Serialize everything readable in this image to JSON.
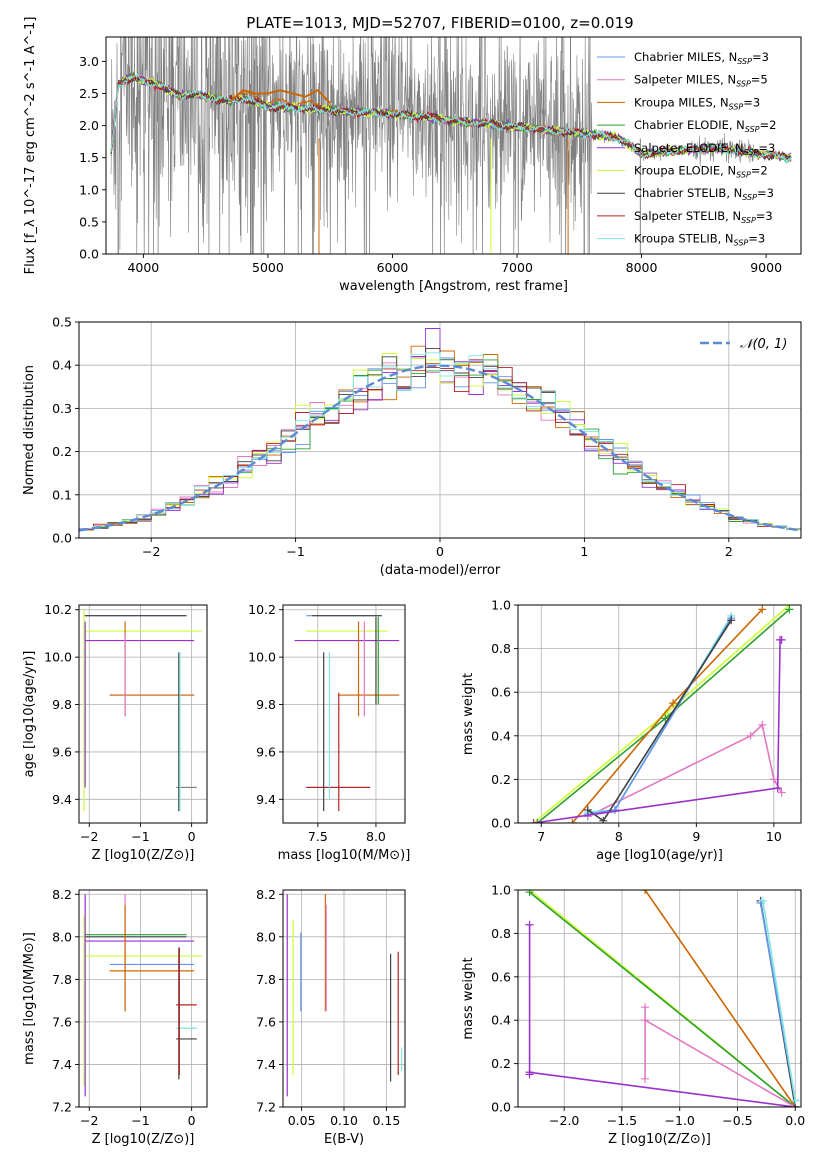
{
  "title": "PLATE=1013, MJD=52707, FIBERID=0100, z=0.019",
  "colors": {
    "c0": "#6495ed",
    "c1": "#e377c2",
    "c2": "#cc6600",
    "c3": "#2ca02c",
    "c4": "#9932cc",
    "c5": "#ccff33",
    "c6": "#404040",
    "c7": "#b22222",
    "c8": "#7fe5e5",
    "data": "#808080"
  },
  "legend": [
    {
      "model": "Chabrier MILES",
      "nssp": "3",
      "color": "#6495ed"
    },
    {
      "model": "Salpeter MILES",
      "nssp": "5",
      "color": "#e377c2"
    },
    {
      "model": "Kroupa MILES",
      "nssp": "3",
      "color": "#cc6600"
    },
    {
      "model": "Chabrier ELODIE",
      "nssp": "2",
      "color": "#2ca02c"
    },
    {
      "model": "Salpeter ELODIE",
      "nssp": "3",
      "color": "#9932cc"
    },
    {
      "model": "Kroupa ELODIE",
      "nssp": "2",
      "color": "#ccff33"
    },
    {
      "model": "Chabrier STELIB",
      "nssp": "3",
      "color": "#404040"
    },
    {
      "model": "Salpeter STELIB",
      "nssp": "3",
      "color": "#b22222"
    },
    {
      "model": "Kroupa STELIB",
      "nssp": "3",
      "color": "#7fe5e5"
    }
  ],
  "nssp_prefix": "N",
  "nssp_sub": "SSP",
  "chart_data": [
    {
      "id": "spectrum",
      "type": "line",
      "xlabel": "wavelength [Angstrom, rest frame]",
      "ylabel": "Flux [f_λ 10^-17 erg cm^-2 s^-1 A^-1]",
      "xlim": [
        3700,
        9280
      ],
      "ylim": [
        0,
        3.38
      ],
      "xticks": [
        4000,
        5000,
        6000,
        7000,
        8000,
        9000
      ],
      "yticks": [
        0.0,
        0.5,
        1.0,
        1.5,
        2.0,
        2.5,
        3.0
      ],
      "continuum": {
        "x": [
          3740,
          3800,
          3900,
          4000,
          4100,
          4200,
          4300,
          4400,
          4500,
          4600,
          4700,
          4800,
          4900,
          5000,
          5200,
          5400,
          5600,
          5800,
          6000,
          6200,
          6400,
          6600,
          6800,
          7000,
          7200,
          7400,
          7600,
          7800,
          7900,
          8000,
          8200,
          8400,
          8600,
          8800,
          9000,
          9200
        ],
        "y": [
          1.55,
          2.65,
          2.75,
          2.7,
          2.65,
          2.55,
          2.45,
          2.5,
          2.45,
          2.4,
          2.38,
          2.42,
          2.35,
          2.3,
          2.28,
          2.25,
          2.22,
          2.2,
          2.18,
          2.15,
          2.1,
          2.05,
          2.02,
          1.98,
          1.94,
          1.9,
          1.86,
          1.82,
          1.7,
          1.55,
          1.6,
          1.62,
          1.65,
          1.6,
          1.55,
          1.5
        ]
      },
      "orange_bump": {
        "x": [
          4700,
          4800,
          4900,
          5000,
          5100,
          5200,
          5300,
          5400,
          5500
        ],
        "y": [
          2.38,
          2.55,
          2.5,
          2.5,
          2.55,
          2.5,
          2.45,
          2.55,
          2.35
        ]
      },
      "dropouts": [
        {
          "x": 5410,
          "color": "#cc6600"
        },
        {
          "x": 6790,
          "color": "#ccff33"
        },
        {
          "x": 7410,
          "color": "#cc6600"
        },
        {
          "x": 5790,
          "color": "#808080"
        },
        {
          "x": 7990,
          "color": "#808080"
        }
      ],
      "noise_range": [
        3740,
        7600
      ]
    },
    {
      "id": "residuals",
      "type": "bar",
      "xlabel": "(data-model)/error",
      "ylabel": "Normed distribution",
      "xlim": [
        -2.5,
        2.5
      ],
      "ylim": [
        0,
        0.5
      ],
      "xticks": [
        -2,
        -1,
        0,
        1,
        2
      ],
      "yticks": [
        0.0,
        0.1,
        0.2,
        0.3,
        0.4,
        0.5
      ],
      "bin_width": 0.1,
      "reference_label": "𝒩(0, 1)",
      "reference_color": "#5b8bd6"
    },
    {
      "id": "age-vs-z",
      "type": "scatter",
      "xlabel": "Z [log10(Z/Z⊙)]",
      "ylabel": "age  [log10(age/yr)]",
      "xlim": [
        -2.2,
        0.3
      ],
      "ylim": [
        9.3,
        10.22
      ],
      "xticks": [
        -2,
        -1,
        0
      ],
      "yticks": [
        9.4,
        9.6,
        9.8,
        10.0,
        10.2
      ],
      "hsegs": [
        {
          "x0": -2.1,
          "x1": -0.1,
          "y": 10.175,
          "color": "#6495ed"
        },
        {
          "x0": -2.1,
          "x1": -0.1,
          "y": 10.175,
          "color": "#404040"
        },
        {
          "x0": -2.1,
          "x1": 0.2,
          "y": 10.11,
          "color": "#ccff33"
        },
        {
          "x0": -2.1,
          "x1": 0.05,
          "y": 10.07,
          "color": "#9932cc"
        },
        {
          "x0": -1.6,
          "x1": 0.05,
          "y": 9.84,
          "color": "#e377c2"
        },
        {
          "x0": -1.6,
          "x1": 0.05,
          "y": 9.84,
          "color": "#cc6600"
        },
        {
          "x0": -0.3,
          "x1": 0.1,
          "y": 9.45,
          "color": "#7fe5e5"
        },
        {
          "x0": -0.3,
          "x1": 0.1,
          "y": 9.45,
          "color": "#808080"
        }
      ],
      "vsegs": [
        {
          "x": -2.1,
          "y0": 9.35,
          "y1": 10.2,
          "color": "#ccff33"
        },
        {
          "x": -2.08,
          "y0": 9.45,
          "y1": 10.15,
          "color": "#9932cc"
        },
        {
          "x": -1.3,
          "y0": 9.75,
          "y1": 10.15,
          "color": "#cc6600"
        },
        {
          "x": -1.3,
          "y0": 9.75,
          "y1": 10.1,
          "color": "#e377c2"
        },
        {
          "x": -0.25,
          "y0": 9.35,
          "y1": 10.02,
          "color": "#404040"
        },
        {
          "x": -0.23,
          "y0": 9.35,
          "y1": 10.02,
          "color": "#7fe5e5"
        }
      ]
    },
    {
      "id": "age-vs-mass",
      "type": "scatter",
      "xlabel": "mass [log10(M/M⊙)]",
      "ylabel": "",
      "xlim": [
        7.2,
        8.25
      ],
      "ylim": [
        9.3,
        10.22
      ],
      "xticks": [
        7.5,
        8.0
      ],
      "yticks": [
        9.4,
        9.6,
        9.8,
        10.0,
        10.2
      ],
      "hsegs": [
        {
          "x0": 7.4,
          "x1": 8.05,
          "y": 10.175,
          "color": "#6495ed"
        },
        {
          "x0": 7.45,
          "x1": 8.05,
          "y": 10.175,
          "color": "#404040"
        },
        {
          "x0": 7.4,
          "x1": 8.1,
          "y": 10.11,
          "color": "#ccff33"
        },
        {
          "x0": 7.3,
          "x1": 8.2,
          "y": 10.07,
          "color": "#9932cc"
        },
        {
          "x0": 7.68,
          "x1": 8.2,
          "y": 9.84,
          "color": "#e377c2"
        },
        {
          "x0": 7.68,
          "x1": 8.2,
          "y": 9.84,
          "color": "#cc6600"
        },
        {
          "x0": 7.4,
          "x1": 7.95,
          "y": 9.45,
          "color": "#404040"
        },
        {
          "x0": 7.4,
          "x1": 7.95,
          "y": 9.45,
          "color": "#b22222"
        }
      ],
      "vsegs": [
        {
          "x": 7.55,
          "y0": 9.35,
          "y1": 10.02,
          "color": "#404040"
        },
        {
          "x": 7.6,
          "y0": 9.4,
          "y1": 10.02,
          "color": "#7fe5e5"
        },
        {
          "x": 7.68,
          "y0": 9.35,
          "y1": 9.85,
          "color": "#b22222"
        },
        {
          "x": 7.85,
          "y0": 9.75,
          "y1": 10.15,
          "color": "#cc6600"
        },
        {
          "x": 7.9,
          "y0": 9.75,
          "y1": 10.15,
          "color": "#e377c2"
        },
        {
          "x": 8.0,
          "y0": 9.8,
          "y1": 10.17,
          "color": "#404040"
        },
        {
          "x": 8.02,
          "y0": 9.8,
          "y1": 10.17,
          "color": "#2ca02c"
        }
      ]
    },
    {
      "id": "weight-vs-age",
      "type": "line",
      "xlabel": "age  [log10(age/yr)]",
      "ylabel": "mass weight",
      "xlim": [
        6.7,
        10.35
      ],
      "ylim": [
        0,
        1.0
      ],
      "xticks": [
        7,
        8,
        9,
        10
      ],
      "yticks": [
        0.0,
        0.2,
        0.4,
        0.6,
        0.8,
        1.0
      ],
      "series": [
        {
          "color": "#ccff33",
          "x": [
            6.9,
            8.6,
            10.2
          ],
          "y": [
            0.0,
            0.5,
            1.0
          ]
        },
        {
          "color": "#2ca02c",
          "x": [
            6.95,
            8.6,
            10.2
          ],
          "y": [
            0.0,
            0.48,
            0.98
          ]
        },
        {
          "color": "#cc6600",
          "x": [
            7.4,
            8.7,
            9.85
          ],
          "y": [
            0.0,
            0.55,
            0.98
          ]
        },
        {
          "color": "#e377c2",
          "x": [
            7.6,
            9.7,
            9.85,
            10.0,
            10.1
          ],
          "y": [
            0.03,
            0.4,
            0.45,
            0.2,
            0.14
          ]
        },
        {
          "color": "#7fe5e5",
          "x": [
            7.6,
            7.95,
            9.45
          ],
          "y": [
            0.05,
            0.06,
            0.95
          ]
        },
        {
          "color": "#6495ed",
          "x": [
            7.6,
            7.95,
            9.45
          ],
          "y": [
            0.04,
            0.06,
            0.94
          ]
        },
        {
          "color": "#404040",
          "x": [
            7.6,
            7.8,
            9.45
          ],
          "y": [
            0.06,
            0.01,
            0.93
          ]
        },
        {
          "color": "#9932cc",
          "x": [
            6.9,
            10.05,
            10.08,
            10.1
          ],
          "y": [
            0.0,
            0.16,
            0.84,
            0.84
          ]
        }
      ]
    },
    {
      "id": "mass-vs-z",
      "type": "scatter",
      "xlabel": "Z [log10(Z/Z⊙)]",
      "ylabel": "mass [log10(M/M⊙)]",
      "xlim": [
        -2.2,
        0.3
      ],
      "ylim": [
        7.2,
        8.22
      ],
      "xticks": [
        -2,
        -1,
        0
      ],
      "yticks": [
        7.2,
        7.4,
        7.6,
        7.8,
        8.0,
        8.2
      ],
      "hsegs": [
        {
          "x0": -2.1,
          "x1": -0.1,
          "y": 8.0,
          "color": "#404040"
        },
        {
          "x0": -2.1,
          "x1": -0.1,
          "y": 8.01,
          "color": "#2ca02c"
        },
        {
          "x0": -2.1,
          "x1": 0.2,
          "y": 7.91,
          "color": "#ccff33"
        },
        {
          "x0": -2.1,
          "x1": 0.05,
          "y": 7.98,
          "color": "#9932cc"
        },
        {
          "x0": -1.6,
          "x1": 0.05,
          "y": 7.87,
          "color": "#6495ed"
        },
        {
          "x0": -1.6,
          "x1": 0.05,
          "y": 7.84,
          "color": "#cc6600"
        },
        {
          "x0": -0.3,
          "x1": 0.1,
          "y": 7.68,
          "color": "#b22222"
        },
        {
          "x0": -0.3,
          "x1": 0.1,
          "y": 7.57,
          "color": "#7fe5e5"
        },
        {
          "x0": -0.3,
          "x1": 0.1,
          "y": 7.52,
          "color": "#404040"
        }
      ],
      "vsegs": [
        {
          "x": -2.1,
          "y0": 7.3,
          "y1": 8.1,
          "color": "#ccff33"
        },
        {
          "x": -2.08,
          "y0": 7.25,
          "y1": 8.2,
          "color": "#9932cc"
        },
        {
          "x": -1.3,
          "y0": 7.65,
          "y1": 8.2,
          "color": "#e377c2"
        },
        {
          "x": -1.3,
          "y0": 7.65,
          "y1": 8.15,
          "color": "#cc6600"
        },
        {
          "x": -0.25,
          "y0": 7.33,
          "y1": 7.95,
          "color": "#404040"
        },
        {
          "x": -0.24,
          "y0": 7.35,
          "y1": 7.95,
          "color": "#b22222"
        }
      ]
    },
    {
      "id": "mass-vs-ebv",
      "type": "scatter",
      "xlabel": "E(B-V)",
      "ylabel": "",
      "xlim": [
        0.028,
        0.172
      ],
      "ylim": [
        7.2,
        8.22
      ],
      "xticks": [
        0.05,
        0.1,
        0.15
      ],
      "yticks": [
        7.2,
        7.4,
        7.6,
        7.8,
        8.0,
        8.2
      ],
      "vsegs": [
        {
          "x": 0.033,
          "y0": 7.25,
          "y1": 8.2,
          "color": "#9932cc"
        },
        {
          "x": 0.04,
          "y0": 7.35,
          "y1": 8.08,
          "color": "#ccff33"
        },
        {
          "x": 0.049,
          "y0": 7.65,
          "y1": 8.02,
          "color": "#6495ed"
        },
        {
          "x": 0.078,
          "y0": 7.65,
          "y1": 8.2,
          "color": "#cc6600"
        },
        {
          "x": 0.079,
          "y0": 7.65,
          "y1": 8.15,
          "color": "#e377c2"
        },
        {
          "x": 0.155,
          "y0": 7.32,
          "y1": 7.92,
          "color": "#404040"
        },
        {
          "x": 0.164,
          "y0": 7.35,
          "y1": 7.93,
          "color": "#b22222"
        },
        {
          "x": 0.168,
          "y0": 7.37,
          "y1": 7.48,
          "color": "#7fe5e5"
        }
      ]
    },
    {
      "id": "weight-vs-z",
      "type": "line",
      "xlabel": "Z [log10(Z/Z⊙)]",
      "ylabel": "mass weight",
      "xlim": [
        -2.4,
        0.05
      ],
      "ylim": [
        0,
        1.0
      ],
      "xticks": [
        -2.0,
        -1.5,
        -1.0,
        -0.5,
        0.0
      ],
      "yticks": [
        0.0,
        0.2,
        0.4,
        0.6,
        0.8,
        1.0
      ],
      "series": [
        {
          "color": "#ccff33",
          "x": [
            -2.3,
            0.0
          ],
          "y": [
            1.0,
            0.0
          ]
        },
        {
          "color": "#2ca02c",
          "x": [
            -2.3,
            0.0
          ],
          "y": [
            0.99,
            0.0
          ]
        },
        {
          "color": "#cc6600",
          "x": [
            -1.3,
            0.0
          ],
          "y": [
            1.0,
            0.0
          ]
        },
        {
          "color": "#9932cc",
          "x": [
            -2.3,
            -2.3,
            -2.3,
            0.0
          ],
          "y": [
            0.84,
            0.15,
            0.16,
            0.0
          ]
        },
        {
          "color": "#e377c2",
          "x": [
            -1.3,
            -1.3,
            -1.3,
            0.0
          ],
          "y": [
            0.13,
            0.46,
            0.4,
            0.0
          ]
        },
        {
          "color": "#404040",
          "x": [
            -0.3,
            0.0
          ],
          "y": [
            0.95,
            0.0
          ]
        },
        {
          "color": "#6495ed",
          "x": [
            -0.3,
            0.0
          ],
          "y": [
            0.94,
            0.03
          ]
        },
        {
          "color": "#7fe5e5",
          "x": [
            -0.28,
            0.0
          ],
          "y": [
            0.95,
            0.03
          ]
        }
      ]
    }
  ]
}
